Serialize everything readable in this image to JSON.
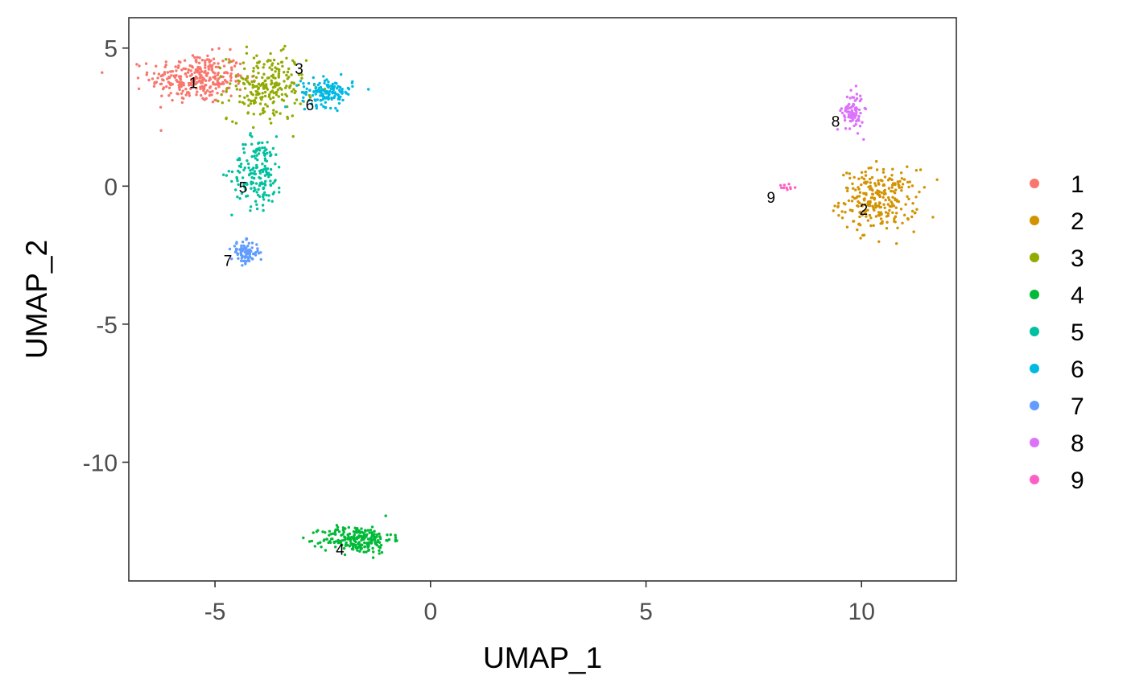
{
  "chart_data": {
    "type": "scatter",
    "title": "",
    "xlabel": "UMAP_1",
    "ylabel": "UMAP_2",
    "xlim": [
      -7,
      12.2
    ],
    "ylim": [
      -14.3,
      6.1
    ],
    "x_ticks": [
      -5,
      0,
      5,
      10
    ],
    "y_ticks": [
      -10,
      -5,
      0,
      5
    ],
    "x_tick_labels": [
      "-5",
      "0",
      "5",
      "10"
    ],
    "y_tick_labels": [
      "-10",
      "-5",
      "0",
      "5"
    ],
    "grid": false,
    "legend_position": "right",
    "legend_title": "",
    "series": [
      {
        "name": "1",
        "color": "#F8766D",
        "center": [
          -5.4,
          3.9
        ],
        "spread": [
          0.55,
          0.45
        ],
        "n": 300,
        "label_position": [
          -5.5,
          3.7
        ]
      },
      {
        "name": "2",
        "color": "#D39200",
        "center": [
          10.4,
          -0.5
        ],
        "spread": [
          0.45,
          0.55
        ],
        "n": 260,
        "label_position": [
          10.05,
          -0.9
        ]
      },
      {
        "name": "3",
        "color": "#93AA00",
        "center": [
          -3.8,
          3.6
        ],
        "spread": [
          0.45,
          0.6
        ],
        "n": 230,
        "label_position": [
          -3.05,
          4.2
        ]
      },
      {
        "name": "4",
        "color": "#00BA38",
        "center": [
          -1.7,
          -12.8
        ],
        "spread": [
          0.4,
          0.25
        ],
        "n": 230,
        "label_position": [
          -2.1,
          -13.2
        ]
      },
      {
        "name": "5",
        "color": "#00C19F",
        "center": [
          -4.0,
          0.5
        ],
        "spread": [
          0.3,
          0.65
        ],
        "n": 170,
        "label_position": [
          -4.35,
          -0.1
        ]
      },
      {
        "name": "6",
        "color": "#00B9E3",
        "center": [
          -2.4,
          3.4
        ],
        "spread": [
          0.3,
          0.25
        ],
        "n": 140,
        "label_position": [
          -2.8,
          2.9
        ]
      },
      {
        "name": "7",
        "color": "#619CFF",
        "center": [
          -4.3,
          -2.4
        ],
        "spread": [
          0.16,
          0.2
        ],
        "n": 90,
        "label_position": [
          -4.7,
          -2.75
        ]
      },
      {
        "name": "8",
        "color": "#DB72FB",
        "center": [
          9.8,
          2.7
        ],
        "spread": [
          0.12,
          0.35
        ],
        "n": 90,
        "label_position": [
          9.4,
          2.3
        ]
      },
      {
        "name": "9",
        "color": "#FF61C3",
        "center": [
          8.3,
          0.0
        ],
        "spread": [
          0.1,
          0.06
        ],
        "n": 10,
        "label_position": [
          7.9,
          -0.45
        ]
      }
    ]
  }
}
